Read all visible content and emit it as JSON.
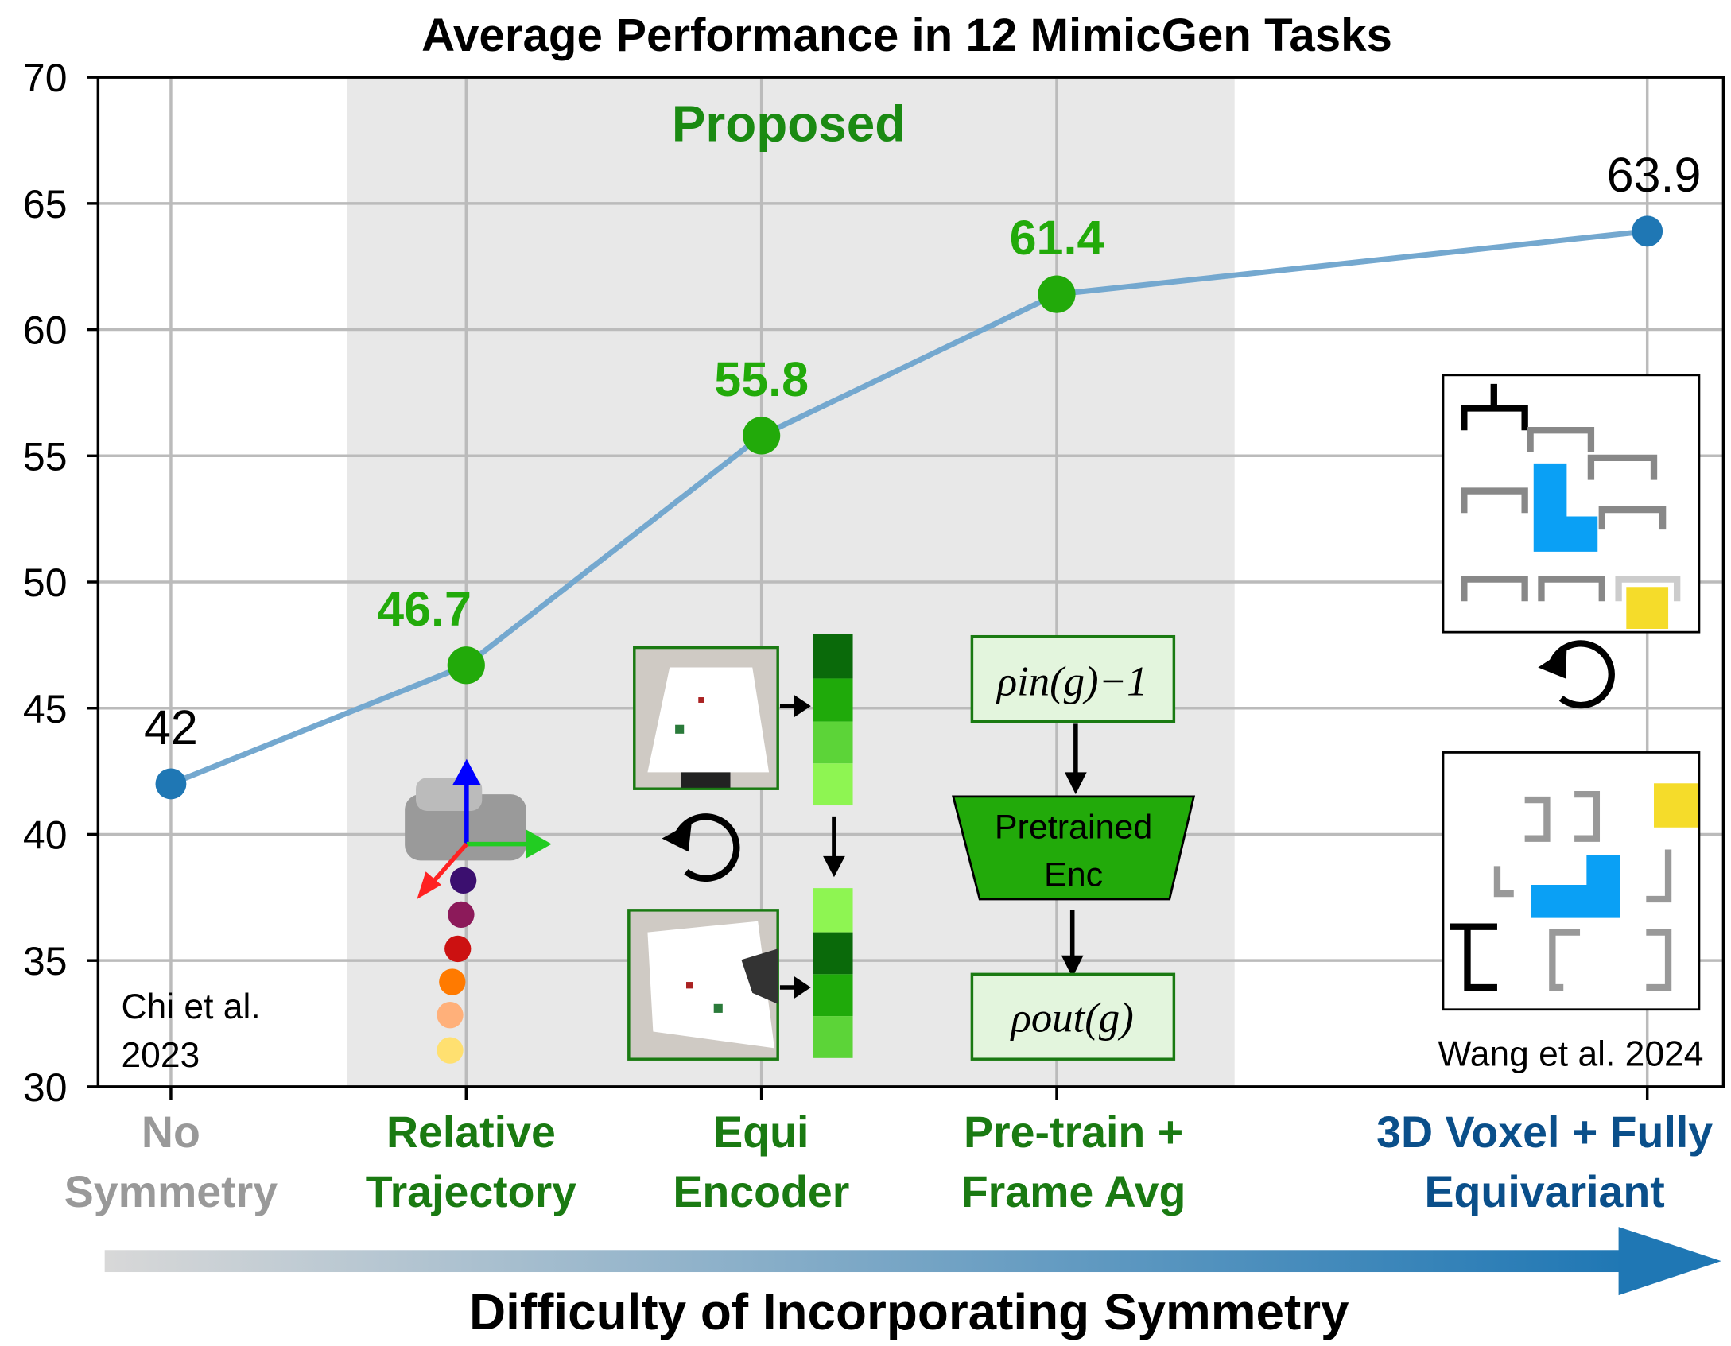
{
  "chart_data": {
    "type": "line",
    "title": "Average Performance in 12 MimicGen Tasks",
    "xlabel": "Difficulty of Incorporating Symmetry",
    "ylabel": "",
    "ylim": [
      30,
      70
    ],
    "yticks": [
      "30",
      "35",
      "40",
      "45",
      "50",
      "55",
      "60",
      "65",
      "70"
    ],
    "grid": true,
    "categories": [
      [
        "No",
        "Symmetry"
      ],
      [
        "Relative",
        "Trajectory"
      ],
      [
        "Equi",
        "Encoder"
      ],
      [
        "Pre-train +",
        "Frame Avg"
      ],
      [
        "3D Voxel + Fully",
        "Equivariant"
      ]
    ],
    "x_positions": [
      0,
      1,
      2,
      3,
      5
    ],
    "values": [
      42,
      46.7,
      55.8,
      61.4,
      63.9
    ],
    "value_labels": [
      "42",
      "46.7",
      "55.8",
      "61.4",
      "63.9"
    ],
    "point_groups": [
      "baseline",
      "proposed",
      "proposed",
      "proposed",
      "baseline"
    ],
    "shaded_region_label": "Proposed",
    "annotations": {
      "left_ref": [
        "Chi et al.",
        "2023"
      ],
      "right_ref": "Wang et al. 2024",
      "encoder_top": "ρin(g)−1",
      "encoder_mid": [
        "Pretrained",
        "Enc"
      ],
      "encoder_bottom": "ρout(g)"
    },
    "colors": {
      "baseline": "#1f77b4",
      "proposed": "#22aa0a",
      "proposed_text": "#1a7a12",
      "gray_text": "#999999",
      "voxel_text": "#0a4f8a",
      "shade": "#e8e8e8"
    }
  }
}
